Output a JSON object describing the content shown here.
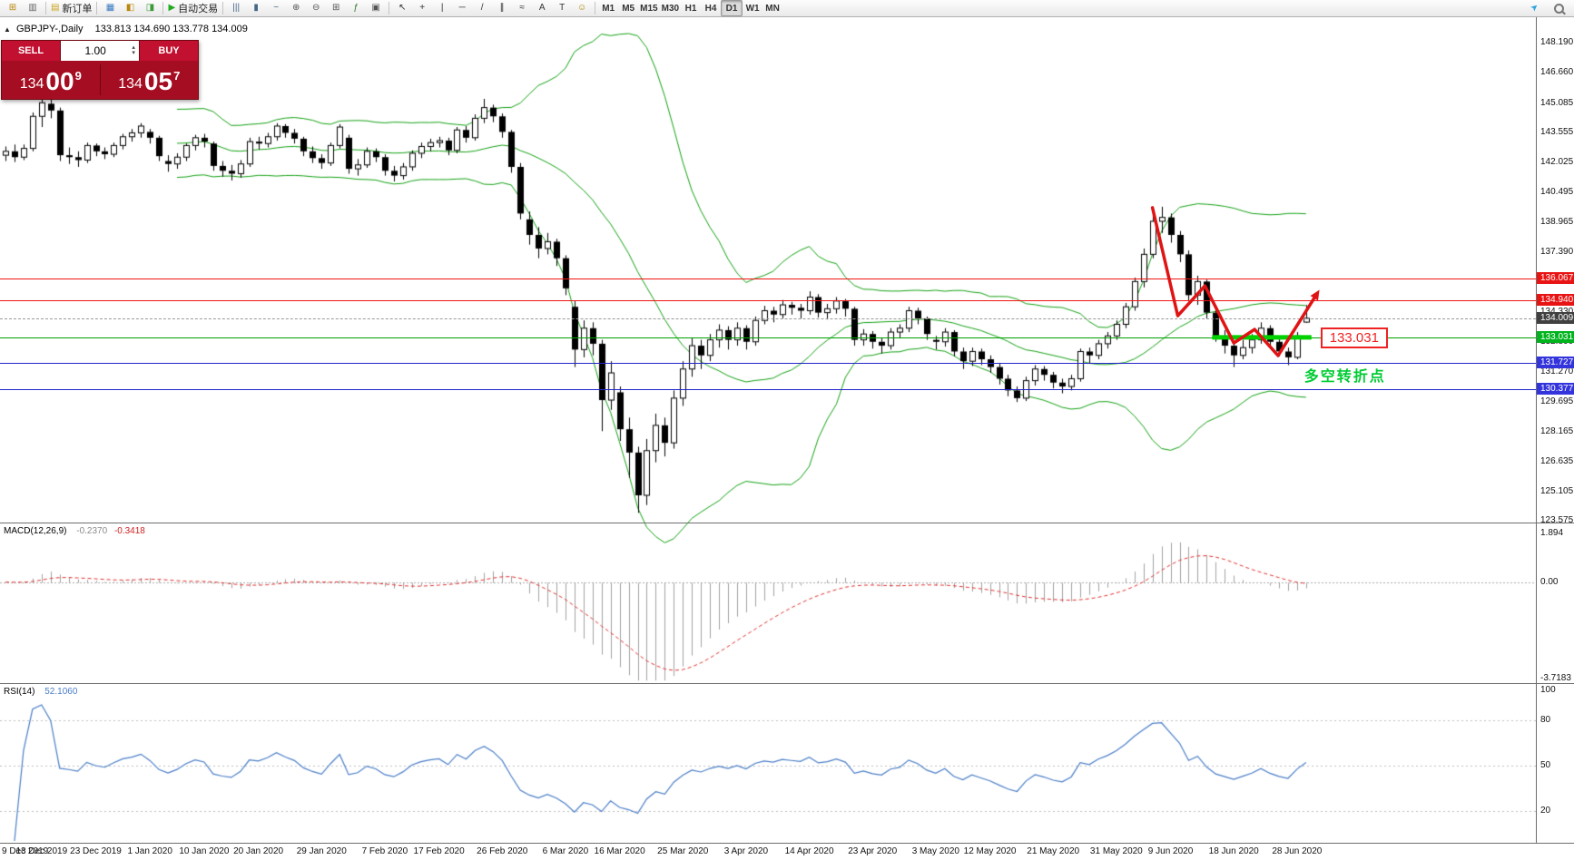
{
  "toolbar": {
    "left_buttons": [
      {
        "name": "new-chart-icon",
        "glyph": "⊞",
        "color": "#b8860b"
      },
      {
        "name": "profiles-icon",
        "glyph": "▥",
        "color": "#666666"
      },
      {
        "name": "new-order-button",
        "glyph": "▤",
        "label": "新订单",
        "color": "#caa41f"
      },
      {
        "name": "market-watch-icon",
        "glyph": "▦",
        "color": "#3a7abf"
      },
      {
        "name": "navigator-icon",
        "glyph": "◧",
        "color": "#b8860b"
      },
      {
        "name": "terminal-icon",
        "glyph": "◨",
        "color": "#3a9a3a"
      },
      {
        "name": "autotrading-button",
        "glyph": "▶",
        "label": "自动交易",
        "color": "#22aa22"
      }
    ],
    "chart_buttons": [
      {
        "name": "bar-chart-icon",
        "glyph": "|||",
        "color": "#446688"
      },
      {
        "name": "candlestick-chart-icon",
        "glyph": "▮",
        "color": "#446688"
      },
      {
        "name": "line-chart-icon",
        "glyph": "~",
        "color": "#446688"
      },
      {
        "name": "zoom-in-icon",
        "glyph": "⊕",
        "color": "#555555"
      },
      {
        "name": "zoom-out-icon",
        "glyph": "⊖",
        "color": "#555555"
      },
      {
        "name": "tile-windows-icon",
        "glyph": "⊞",
        "color": "#555555"
      },
      {
        "name": "indicators-icon",
        "glyph": "ƒ",
        "color": "#2a7a2a"
      },
      {
        "name": "templates-icon",
        "glyph": "▣",
        "color": "#555555"
      }
    ],
    "draw_buttons": [
      {
        "name": "cursor-icon",
        "glyph": "↖",
        "color": "#333333"
      },
      {
        "name": "crosshair-icon",
        "glyph": "+",
        "color": "#333333"
      },
      {
        "name": "vertical-line-icon",
        "glyph": "|",
        "color": "#333333"
      },
      {
        "name": "horizontal-line-icon",
        "glyph": "─",
        "color": "#333333"
      },
      {
        "name": "trendline-icon",
        "glyph": "/",
        "color": "#333333"
      },
      {
        "name": "channel-icon",
        "glyph": "∥",
        "color": "#333333"
      },
      {
        "name": "fibonacci-icon",
        "glyph": "≈",
        "color": "#333333"
      },
      {
        "name": "text-icon",
        "glyph": "A",
        "color": "#333333"
      },
      {
        "name": "label-icon",
        "glyph": "T",
        "color": "#333333"
      },
      {
        "name": "arrows-icon",
        "glyph": "☺",
        "color": "#aa8800"
      }
    ],
    "timeframes": [
      "M1",
      "M5",
      "M15",
      "M30",
      "H1",
      "H4",
      "D1",
      "W1",
      "MN"
    ],
    "active_timeframe": "D1",
    "right_buttons": [
      {
        "name": "community-icon",
        "glyph": "➤",
        "color": "#2aa3dd"
      },
      {
        "name": "search-icon",
        "glyph": "",
        "css": "mag"
      }
    ]
  },
  "chart": {
    "toggle_glyph": "▲",
    "title": "GBPJPY-,Daily",
    "ohlc_values": "133.813 134.690 133.778 134.009",
    "y_ticks": [
      "148.190",
      "146.660",
      "145.085",
      "143.555",
      "142.025",
      "140.495",
      "138.965",
      "137.390",
      "135.860",
      "134.330",
      "132.800",
      "131.270",
      "129.695",
      "128.165",
      "126.635",
      "125.105",
      "123.575"
    ]
  },
  "trade": {
    "sell_label": "SELL",
    "buy_label": "BUY",
    "volume": "1.00",
    "sell_price": {
      "prefix": "134",
      "big": "00",
      "sup": "9"
    },
    "buy_price": {
      "prefix": "134",
      "big": "05",
      "sup": "7"
    }
  },
  "levels": [
    {
      "label": "136.067",
      "price": 136.067,
      "type": "red"
    },
    {
      "label": "134.940",
      "price": 134.94,
      "type": "red"
    },
    {
      "label": "134.009",
      "price": 134.009,
      "type": "current"
    },
    {
      "label": "133.031",
      "price": 133.031,
      "type": "green"
    },
    {
      "label": "131.727",
      "price": 131.727,
      "type": "blue"
    },
    {
      "label": "130.377",
      "price": 130.377,
      "type": "blue"
    }
  ],
  "annotations": {
    "zigzag": [
      [
        127,
        139.7
      ],
      [
        129.8,
        134.14
      ],
      [
        132.8,
        135.68
      ],
      [
        136,
        132.74
      ],
      [
        138.3,
        133.44
      ],
      [
        140.9,
        132.09
      ],
      [
        145,
        135.12
      ]
    ],
    "support_bar": {
      "price": 133.031,
      "from_idx": 133.6,
      "to_idx": 144.6
    },
    "level_label": {
      "text": "133.031",
      "idx": 145.6,
      "price": 132.97
    },
    "pivot_text": {
      "text": "多空转折点",
      "idx": 143.8,
      "price": 131.2
    }
  },
  "panels": {
    "macd": {
      "title": "MACD(12,26,9)",
      "value1": "-0.2370",
      "value2": "-0.3418",
      "axis": [
        "1.894",
        "0.00",
        "-3.7183"
      ],
      "range": [
        2.3,
        -3.9
      ]
    },
    "rsi": {
      "title": "RSI(14)",
      "value": "52.1060",
      "axis": [
        "100",
        "80",
        "50",
        "20"
      ],
      "levels": [
        80,
        50,
        20
      ]
    }
  },
  "colors": {
    "bb": "#12a012",
    "macd_hist": "#a0a0a0",
    "macd_signal": "#e03030",
    "rsi": "#4a7ec7",
    "level_red": "#f01414",
    "level_blue": "#2424cc",
    "level_green": "#00a000",
    "badge_red": "#e81414",
    "badge_blue": "#3434dd",
    "badge_green": "#00b41e",
    "badge_dark": "#404040",
    "zigzag": "#e01414",
    "support_bar": "#00d200",
    "candle_up": "#ffffff",
    "candle_down": "#000000"
  },
  "chart_data": {
    "type": "candlestick",
    "symbol": "GBPJPY-",
    "timeframe": "Daily",
    "indicators": {
      "bollinger": {
        "period": 20,
        "deviation": 2
      },
      "macd": {
        "fast": 12,
        "slow": 26,
        "signal": 9
      },
      "rsi": {
        "period": 14
      }
    },
    "x_labels": [
      {
        "idx": 0,
        "label": "9 Dec 2019"
      },
      {
        "idx": 4,
        "label": "13 Dec 2019"
      },
      {
        "idx": 10,
        "label": "23 Dec 2019"
      },
      {
        "idx": 16,
        "label": "1 Jan 2020"
      },
      {
        "idx": 22,
        "label": "10 Jan 2020"
      },
      {
        "idx": 28,
        "label": "20 Jan 2020"
      },
      {
        "idx": 35,
        "label": "29 Jan 2020"
      },
      {
        "idx": 42,
        "label": "7 Feb 2020"
      },
      {
        "idx": 48,
        "label": "17 Feb 2020"
      },
      {
        "idx": 55,
        "label": "26 Feb 2020"
      },
      {
        "idx": 62,
        "label": "6 Mar 2020"
      },
      {
        "idx": 68,
        "label": "16 Mar 2020"
      },
      {
        "idx": 75,
        "label": "25 Mar 2020"
      },
      {
        "idx": 82,
        "label": "3 Apr 2020"
      },
      {
        "idx": 89,
        "label": "14 Apr 2020"
      },
      {
        "idx": 96,
        "label": "23 Apr 2020"
      },
      {
        "idx": 103,
        "label": "3 May 2020"
      },
      {
        "idx": 109,
        "label": "12 May 2020"
      },
      {
        "idx": 116,
        "label": "21 May 2020"
      },
      {
        "idx": 123,
        "label": "31 May 2020"
      },
      {
        "idx": 129,
        "label": "9 Jun 2020"
      },
      {
        "idx": 136,
        "label": "18 Jun 2020"
      },
      {
        "idx": 143,
        "label": "28 Jun 2020"
      }
    ],
    "ohlc": [
      [
        142.4,
        142.85,
        142.1,
        142.6
      ],
      [
        142.6,
        142.95,
        142.05,
        142.3
      ],
      [
        142.3,
        142.95,
        142.15,
        142.75
      ],
      [
        142.75,
        144.6,
        142.6,
        144.4
      ],
      [
        144.4,
        145.55,
        143.85,
        145.1
      ],
      [
        145.05,
        145.35,
        144.3,
        144.7
      ],
      [
        144.7,
        144.85,
        142.1,
        142.4
      ],
      [
        142.4,
        142.8,
        141.95,
        142.3
      ],
      [
        142.3,
        142.6,
        141.8,
        142.15
      ],
      [
        142.15,
        143.05,
        142.0,
        142.9
      ],
      [
        142.9,
        143.0,
        142.35,
        142.6
      ],
      [
        142.6,
        142.8,
        142.2,
        142.45
      ],
      [
        142.45,
        143.05,
        142.3,
        142.9
      ],
      [
        142.9,
        143.5,
        142.7,
        143.35
      ],
      [
        143.35,
        143.75,
        143.1,
        143.55
      ],
      [
        143.55,
        144.05,
        143.3,
        143.9
      ],
      [
        143.6,
        143.75,
        143.0,
        143.3
      ],
      [
        143.3,
        143.4,
        142.1,
        142.35
      ],
      [
        142.1,
        142.4,
        141.55,
        141.95
      ],
      [
        141.95,
        142.5,
        141.7,
        142.3
      ],
      [
        142.3,
        143.0,
        142.1,
        142.9
      ],
      [
        142.9,
        143.45,
        142.65,
        143.3
      ],
      [
        143.3,
        143.5,
        142.8,
        143.1
      ],
      [
        143.0,
        143.1,
        141.6,
        141.85
      ],
      [
        141.85,
        142.1,
        141.3,
        141.6
      ],
      [
        141.6,
        141.9,
        141.1,
        141.45
      ],
      [
        141.45,
        142.15,
        141.25,
        141.95
      ],
      [
        141.95,
        143.3,
        141.8,
        143.1
      ],
      [
        143.1,
        143.35,
        142.7,
        143.0
      ],
      [
        143.0,
        143.55,
        142.8,
        143.35
      ],
      [
        143.35,
        144.05,
        143.15,
        143.9
      ],
      [
        143.9,
        144.0,
        143.3,
        143.55
      ],
      [
        143.55,
        143.75,
        143.0,
        143.25
      ],
      [
        143.25,
        143.35,
        142.35,
        142.6
      ],
      [
        142.6,
        142.85,
        142.0,
        142.25
      ],
      [
        142.25,
        142.45,
        141.7,
        142.0
      ],
      [
        142.0,
        143.05,
        141.85,
        142.9
      ],
      [
        142.9,
        144.0,
        142.75,
        143.85
      ],
      [
        143.3,
        143.45,
        141.45,
        141.7
      ],
      [
        141.7,
        142.2,
        141.35,
        141.9
      ],
      [
        141.9,
        142.8,
        141.75,
        142.6
      ],
      [
        142.6,
        142.75,
        142.05,
        142.3
      ],
      [
        142.3,
        142.45,
        141.35,
        141.6
      ],
      [
        141.6,
        141.85,
        141.05,
        141.35
      ],
      [
        141.35,
        142.0,
        141.15,
        141.8
      ],
      [
        141.8,
        142.65,
        141.6,
        142.5
      ],
      [
        142.5,
        143.05,
        142.25,
        142.85
      ],
      [
        142.85,
        143.25,
        142.6,
        143.05
      ],
      [
        143.05,
        143.35,
        142.8,
        143.15
      ],
      [
        143.15,
        143.3,
        142.4,
        142.65
      ],
      [
        142.65,
        143.85,
        142.5,
        143.7
      ],
      [
        143.7,
        143.9,
        143.05,
        143.3
      ],
      [
        143.3,
        144.5,
        143.15,
        144.3
      ],
      [
        144.3,
        145.3,
        144.05,
        144.85
      ],
      [
        144.85,
        145.0,
        144.1,
        144.4
      ],
      [
        144.4,
        144.55,
        143.3,
        143.6
      ],
      [
        143.6,
        143.7,
        141.5,
        141.8
      ],
      [
        141.8,
        142.0,
        139.1,
        139.4
      ],
      [
        139.1,
        139.5,
        137.8,
        138.3
      ],
      [
        138.3,
        138.7,
        137.1,
        137.6
      ],
      [
        137.6,
        138.4,
        137.3,
        137.95
      ],
      [
        137.95,
        138.1,
        136.7,
        137.1
      ],
      [
        137.1,
        137.25,
        135.2,
        135.55
      ],
      [
        134.6,
        134.9,
        131.5,
        132.4
      ],
      [
        132.4,
        133.9,
        132.0,
        133.5
      ],
      [
        133.5,
        133.8,
        132.1,
        132.7
      ],
      [
        132.7,
        132.9,
        128.2,
        129.8
      ],
      [
        129.8,
        131.8,
        129.3,
        131.2
      ],
      [
        130.2,
        130.5,
        127.7,
        128.3
      ],
      [
        128.3,
        128.9,
        125.8,
        127.1
      ],
      [
        127.1,
        127.4,
        124.0,
        124.9
      ],
      [
        124.9,
        127.8,
        124.4,
        127.2
      ],
      [
        127.2,
        129.1,
        126.6,
        128.5
      ],
      [
        128.5,
        128.9,
        126.9,
        127.6
      ],
      [
        127.6,
        130.3,
        127.3,
        129.9
      ],
      [
        129.9,
        131.8,
        129.5,
        131.4
      ],
      [
        131.4,
        133.0,
        131.0,
        132.6
      ],
      [
        132.6,
        132.9,
        131.4,
        132.1
      ],
      [
        132.1,
        133.2,
        131.8,
        132.9
      ],
      [
        132.9,
        133.7,
        132.5,
        133.4
      ],
      [
        133.4,
        133.6,
        132.4,
        132.9
      ],
      [
        132.9,
        133.8,
        132.6,
        133.5
      ],
      [
        133.5,
        133.65,
        132.4,
        132.8
      ],
      [
        132.8,
        134.1,
        132.6,
        133.9
      ],
      [
        133.9,
        134.65,
        133.7,
        134.4
      ],
      [
        134.4,
        134.6,
        133.8,
        134.2
      ],
      [
        134.2,
        134.95,
        134.0,
        134.7
      ],
      [
        134.7,
        134.85,
        134.2,
        134.55
      ],
      [
        134.55,
        134.75,
        134.0,
        134.4
      ],
      [
        134.4,
        135.4,
        134.2,
        135.1
      ],
      [
        135.1,
        135.25,
        134.05,
        134.3
      ],
      [
        134.3,
        134.75,
        133.95,
        134.5
      ],
      [
        134.5,
        135.1,
        134.25,
        134.9
      ],
      [
        134.9,
        135.0,
        134.1,
        134.5
      ],
      [
        134.5,
        134.6,
        132.6,
        132.9
      ],
      [
        132.9,
        133.45,
        132.6,
        133.2
      ],
      [
        133.2,
        133.35,
        132.45,
        132.8
      ],
      [
        132.8,
        133.0,
        132.2,
        132.6
      ],
      [
        132.6,
        133.5,
        132.4,
        133.3
      ],
      [
        133.3,
        133.7,
        133.0,
        133.5
      ],
      [
        133.5,
        134.6,
        133.3,
        134.4
      ],
      [
        134.4,
        134.55,
        133.7,
        134.0
      ],
      [
        134.0,
        134.1,
        132.9,
        133.2
      ],
      [
        132.9,
        133.1,
        132.4,
        132.8
      ],
      [
        132.8,
        133.5,
        132.55,
        133.3
      ],
      [
        133.3,
        133.4,
        132.05,
        132.3
      ],
      [
        132.3,
        132.5,
        131.4,
        131.8
      ],
      [
        131.8,
        132.5,
        131.55,
        132.3
      ],
      [
        132.3,
        132.45,
        131.6,
        131.9
      ],
      [
        131.9,
        132.1,
        131.2,
        131.5
      ],
      [
        131.5,
        131.7,
        130.6,
        130.9
      ],
      [
        130.9,
        131.1,
        130.0,
        130.3
      ],
      [
        130.3,
        130.5,
        129.7,
        129.9
      ],
      [
        129.9,
        131.0,
        129.75,
        130.8
      ],
      [
        130.8,
        131.6,
        130.55,
        131.4
      ],
      [
        131.4,
        131.55,
        130.8,
        131.1
      ],
      [
        131.1,
        131.25,
        130.4,
        130.7
      ],
      [
        130.7,
        130.9,
        130.15,
        130.5
      ],
      [
        130.5,
        131.1,
        130.3,
        130.9
      ],
      [
        130.9,
        132.45,
        130.75,
        132.3
      ],
      [
        132.3,
        132.5,
        131.7,
        132.1
      ],
      [
        132.1,
        132.9,
        131.9,
        132.7
      ],
      [
        132.7,
        133.3,
        132.45,
        133.1
      ],
      [
        133.1,
        133.9,
        132.9,
        133.7
      ],
      [
        133.7,
        134.8,
        133.5,
        134.6
      ],
      [
        134.6,
        136.1,
        134.4,
        135.9
      ],
      [
        135.9,
        137.6,
        135.6,
        137.3
      ],
      [
        137.3,
        139.4,
        137.1,
        139.0
      ],
      [
        139.0,
        139.75,
        138.4,
        139.2
      ],
      [
        139.2,
        139.4,
        137.9,
        138.3
      ],
      [
        138.3,
        138.5,
        136.9,
        137.3
      ],
      [
        137.3,
        137.5,
        134.9,
        135.2
      ],
      [
        135.2,
        136.2,
        134.7,
        135.9
      ],
      [
        135.9,
        136.0,
        134.0,
        134.3
      ],
      [
        134.3,
        134.5,
        132.8,
        133.1
      ],
      [
        133.1,
        133.4,
        132.2,
        132.6
      ],
      [
        132.6,
        132.8,
        131.5,
        132.1
      ],
      [
        132.1,
        132.9,
        131.9,
        132.5
      ],
      [
        132.5,
        133.2,
        132.2,
        132.9
      ],
      [
        132.9,
        133.8,
        132.7,
        133.5
      ],
      [
        133.5,
        133.65,
        132.55,
        132.8
      ],
      [
        132.8,
        133.0,
        132.05,
        132.3
      ],
      [
        132.3,
        132.5,
        131.6,
        132.0
      ],
      [
        132.0,
        133.3,
        131.9,
        133.1
      ],
      [
        133.813,
        134.69,
        133.778,
        134.009
      ]
    ]
  }
}
